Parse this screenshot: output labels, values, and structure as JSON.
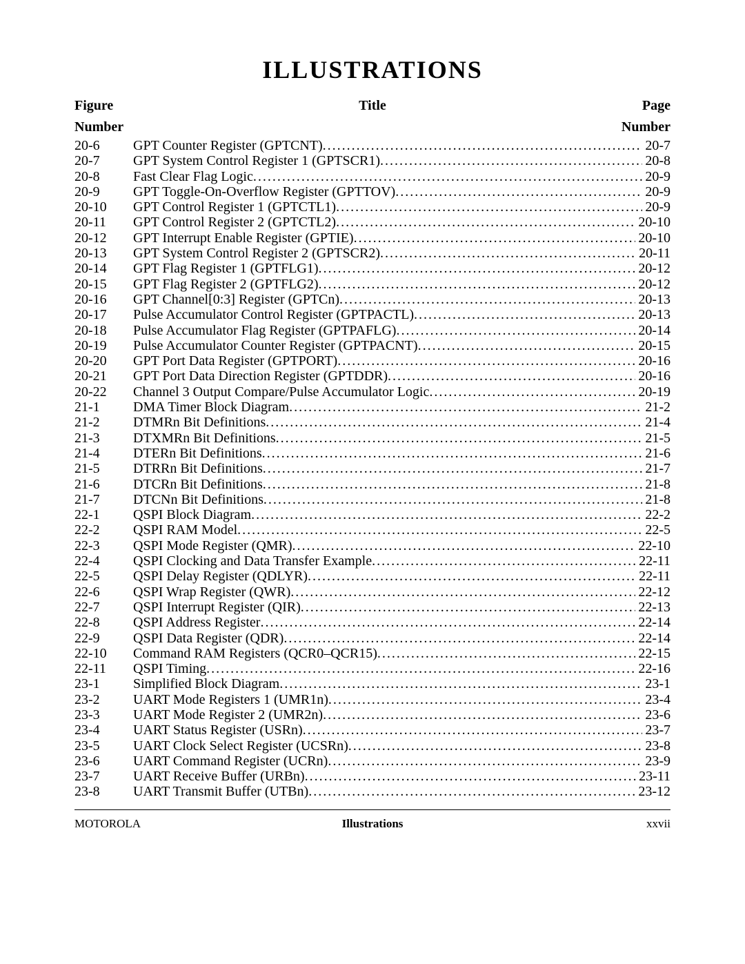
{
  "page_title": "ILLUSTRATIONS",
  "header": {
    "figure_top": "Figure",
    "figure_bottom": "Number",
    "title": "Title",
    "page_top": "Page",
    "page_bottom": "Number"
  },
  "entries": [
    {
      "fig": "20-6",
      "title": "GPT Counter Register (GPTCNT)",
      "page": "20-7"
    },
    {
      "fig": "20-7",
      "title": "GPT System Control Register 1 (GPTSCR1)",
      "page": "20-8"
    },
    {
      "fig": "20-8",
      "title": "Fast Clear Flag Logic",
      "page": "20-9"
    },
    {
      "fig": "20-9",
      "title": "GPT Toggle-On-Overflow Register (GPTTOV)",
      "page": "20-9"
    },
    {
      "fig": "20-10",
      "title": "GPT Control Register 1 (GPTCTL1)",
      "page": "20-9"
    },
    {
      "fig": "20-11",
      "title": "GPT Control Register 2 (GPTCTL2)",
      "page": "20-10"
    },
    {
      "fig": "20-12",
      "title": "GPT Interrupt Enable Register (GPTIE)",
      "page": "20-10"
    },
    {
      "fig": "20-13",
      "title": "GPT System Control Register 2 (GPTSCR2)",
      "page": "20-11"
    },
    {
      "fig": "20-14",
      "title": "GPT Flag Register 1 (GPTFLG1)",
      "page": "20-12"
    },
    {
      "fig": "20-15",
      "title": "GPT Flag Register 2 (GPTFLG2)",
      "page": "20-12"
    },
    {
      "fig": "20-16",
      "title": "GPT Channel[0:3] Register (GPTCn)",
      "page": "20-13"
    },
    {
      "fig": "20-17",
      "title": "Pulse Accumulator Control Register (GPTPACTL)",
      "page": "20-13"
    },
    {
      "fig": "20-18",
      "title": "Pulse Accumulator Flag Register (GPTPAFLG)",
      "page": "20-14"
    },
    {
      "fig": "20-19",
      "title": "Pulse Accumulator Counter Register (GPTPACNT)",
      "page": "20-15"
    },
    {
      "fig": "20-20",
      "title": "GPT Port Data Register (GPTPORT)",
      "page": "20-16"
    },
    {
      "fig": "20-21",
      "title": "GPT Port Data Direction Register (GPTDDR)",
      "page": "20-16"
    },
    {
      "fig": "20-22",
      "title": "Channel 3 Output Compare/Pulse Accumulator Logic",
      "page": "20-19"
    },
    {
      "fig": "21-1",
      "title": "DMA Timer Block Diagram",
      "page": "21-2"
    },
    {
      "fig": "21-2",
      "title": "DTMRn Bit Definitions",
      "page": "21-4"
    },
    {
      "fig": "21-3",
      "title": "DTXMRn Bit Definitions",
      "page": "21-5"
    },
    {
      "fig": "21-4",
      "title": "DTERn Bit Definitions",
      "page": "21-6"
    },
    {
      "fig": "21-5",
      "title": "DTRRn Bit Definitions",
      "page": "21-7"
    },
    {
      "fig": "21-6",
      "title": "DTCRn Bit Definitions",
      "page": "21-8"
    },
    {
      "fig": "21-7",
      "title": "DTCNn Bit Definitions",
      "page": "21-8"
    },
    {
      "fig": "22-1",
      "title": "QSPI Block Diagram",
      "page": "22-2"
    },
    {
      "fig": "22-2",
      "title": "QSPI RAM Model",
      "page": "22-5"
    },
    {
      "fig": "22-3",
      "title": "QSPI Mode Register (QMR)",
      "page": "22-10"
    },
    {
      "fig": "22-4",
      "title": "QSPI Clocking and Data Transfer Example",
      "page": "22-11"
    },
    {
      "fig": "22-5",
      "title": "QSPI Delay Register (QDLYR)",
      "page": "22-11"
    },
    {
      "fig": "22-6",
      "title": "QSPI Wrap Register (QWR)",
      "page": "22-12"
    },
    {
      "fig": "22-7",
      "title": "QSPI Interrupt Register (QIR)",
      "page": "22-13"
    },
    {
      "fig": "22-8",
      "title": "QSPI Address Register",
      "page": "22-14"
    },
    {
      "fig": "22-9",
      "title": "QSPI Data Register (QDR)",
      "page": "22-14"
    },
    {
      "fig": "22-10",
      "title": "Command RAM Registers (QCR0–QCR15)",
      "page": "22-15"
    },
    {
      "fig": "22-11",
      "title": "QSPI Timing",
      "page": "22-16"
    },
    {
      "fig": "23-1",
      "title": "Simplified Block Diagram",
      "page": "23-1"
    },
    {
      "fig": "23-2",
      "title": "UART Mode Registers 1 (UMR1n)",
      "page": "23-4"
    },
    {
      "fig": "23-3",
      "title": "UART Mode Register 2 (UMR2n)",
      "page": "23-6"
    },
    {
      "fig": "23-4",
      "title": "UART Status Register (USRn)",
      "page": "23-7"
    },
    {
      "fig": "23-5",
      "title": "UART Clock Select Register (UCSRn)",
      "page": "23-8"
    },
    {
      "fig": "23-6",
      "title": "UART Command Register (UCRn)",
      "page": "23-9"
    },
    {
      "fig": "23-7",
      "title": "UART Receive Buffer (URBn)",
      "page": "23-11"
    },
    {
      "fig": "23-8",
      "title": "UART Transmit Buffer (UTBn)",
      "page": "23-12"
    }
  ],
  "footer": {
    "left": "MOTOROLA",
    "center": "Illustrations",
    "right": "xxvii"
  },
  "colors": {
    "text": "#000000",
    "background": "#ffffff",
    "rule": "#000000"
  },
  "typography": {
    "body_font": "Times New Roman",
    "title_fontsize_pt": 27,
    "header_fontsize_pt": 15,
    "entry_fontsize_pt": 15,
    "footer_fontsize_pt": 13
  }
}
